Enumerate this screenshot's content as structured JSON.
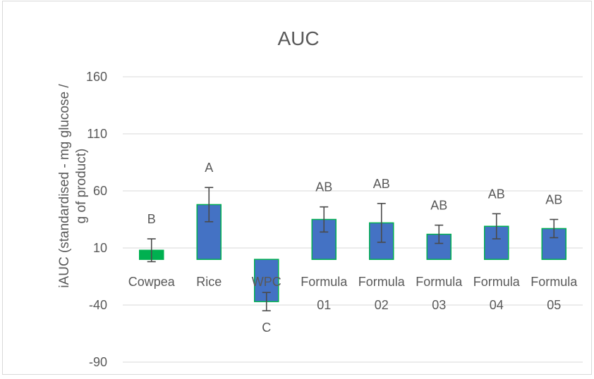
{
  "chart_data": {
    "type": "bar",
    "title": "AUC",
    "xlabel": "",
    "ylabel": "iAUC (standardised - mg glucose / g of product)",
    "ylim": [
      -110,
      175
    ],
    "yticks": [
      160,
      110,
      60,
      10,
      -40,
      -90
    ],
    "grid": true,
    "categories": [
      {
        "line1": "Cowpea",
        "line2": ""
      },
      {
        "line1": "Rice",
        "line2": ""
      },
      {
        "line1": "WPC",
        "line2": ""
      },
      {
        "line1": "Formula",
        "line2": "01"
      },
      {
        "line1": "Formula",
        "line2": "02"
      },
      {
        "line1": "Formula",
        "line2": "03"
      },
      {
        "line1": "Formula",
        "line2": "04"
      },
      {
        "line1": "Formula",
        "line2": "05"
      }
    ],
    "values": [
      8,
      48,
      -37,
      35,
      32,
      22,
      29,
      27
    ],
    "error": [
      10,
      15,
      8,
      11,
      17,
      8,
      11,
      8
    ],
    "significance": [
      "B",
      "A",
      "C",
      "AB",
      "AB",
      "AB",
      "AB",
      "AB"
    ],
    "colors": {
      "default_fill": "#4472c4",
      "highlight_fill": "#00b050",
      "bar_stroke": "#00b050",
      "highlight_index": 0
    }
  }
}
